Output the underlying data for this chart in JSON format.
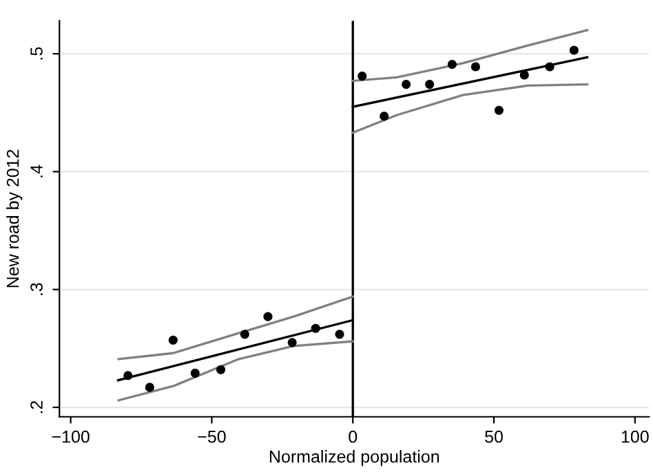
{
  "chart_data": {
    "type": "scatter",
    "xlabel": "Normalized population",
    "ylabel": "New road by 2012",
    "xlim": [
      -104,
      105
    ],
    "ylim": [
      0.192,
      0.528
    ],
    "xticks": [
      {
        "value": -100,
        "label": "−100"
      },
      {
        "value": -50,
        "label": "−50"
      },
      0,
      50,
      100
    ],
    "yticks": [
      {
        "value": 0.2,
        "label": ".2"
      },
      {
        "value": 0.3,
        "label": ".3"
      },
      {
        "value": 0.4,
        "label": ".4"
      },
      {
        "value": 0.5,
        "label": ".5"
      }
    ],
    "grid": "y",
    "legend": false,
    "marker": "circle",
    "ref_lines": [
      {
        "axis": "x",
        "value": 0,
        "color": "#000000"
      }
    ],
    "series": [
      {
        "type": "line",
        "color": "#808080",
        "marker": "none",
        "x": [
          -83,
          -63.7,
          -40.4,
          -21,
          0
        ],
        "values": [
          0.241,
          0.246,
          0.263,
          0.277,
          0.294
        ]
      },
      {
        "type": "line",
        "color": "#808080",
        "marker": "none",
        "x": [
          -83,
          -63.7,
          -40.4,
          -21,
          0
        ],
        "values": [
          0.206,
          0.218,
          0.241,
          0.252,
          0.256
        ]
      },
      {
        "type": "line",
        "color": "#000000",
        "marker": "none",
        "x": [
          -83.2,
          0
        ],
        "values": [
          0.223,
          0.274
        ]
      },
      {
        "type": "line",
        "color": "#808080",
        "marker": "none",
        "x": [
          0,
          15.6,
          39,
          62,
          83.1
        ],
        "values": [
          0.477,
          0.48,
          0.492,
          0.507,
          0.52
        ]
      },
      {
        "type": "line",
        "color": "#808080",
        "marker": "none",
        "x": [
          0,
          15.6,
          39,
          62,
          83.1
        ],
        "values": [
          0.433,
          0.448,
          0.465,
          0.473,
          0.474
        ]
      },
      {
        "type": "line",
        "color": "#000000",
        "marker": "none",
        "x": [
          0,
          83.1
        ],
        "values": [
          0.455,
          0.497
        ]
      },
      {
        "color": "#000000",
        "x": [
          -79.7,
          -72,
          -63.7,
          -55.9,
          -46.8,
          -38.3,
          -30.1,
          -21.5,
          -13.2,
          -4.7
        ],
        "values": [
          0.227,
          0.217,
          0.257,
          0.229,
          0.232,
          0.262,
          0.277,
          0.255,
          0.267,
          0.262
        ]
      },
      {
        "color": "#000000",
        "x": [
          3.3,
          11.1,
          18.9,
          27.2,
          35.2,
          43.5,
          51.8,
          60.8,
          69.8,
          78.4
        ],
        "values": [
          0.481,
          0.447,
          0.474,
          0.474,
          0.491,
          0.489,
          0.452,
          0.482,
          0.489,
          0.503
        ]
      }
    ]
  }
}
